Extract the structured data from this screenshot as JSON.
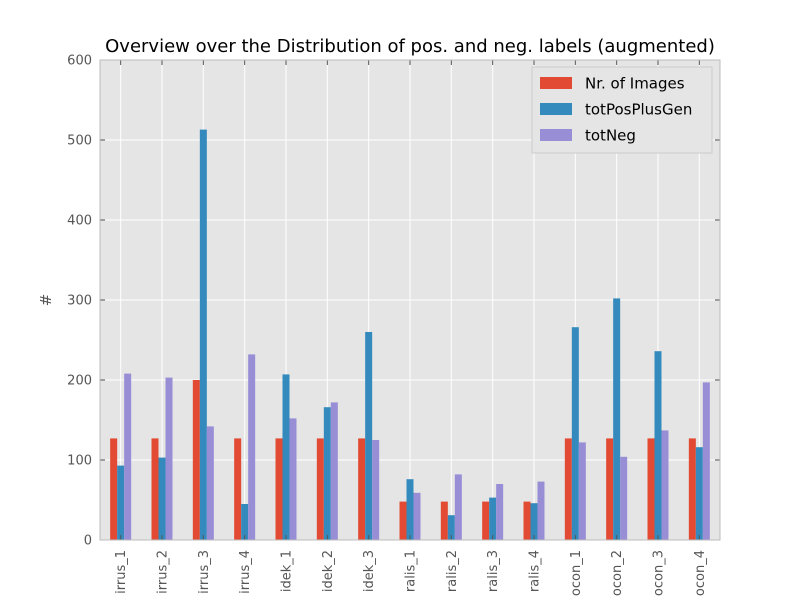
{
  "chart_data": {
    "type": "bar",
    "title": "Overview over the Distribution of pos. and neg. labels (augmented)",
    "xlabel": "",
    "ylabel": "#",
    "ylim": [
      0,
      600
    ],
    "yticks": [
      0,
      100,
      200,
      300,
      400,
      500,
      600
    ],
    "grid": true,
    "legend_position": "top-right",
    "categories": [
      "irrus_1",
      "irrus_2",
      "irrus_3",
      "irrus_4",
      "idek_1",
      "idek_2",
      "idek_3",
      "ralis_1",
      "ralis_2",
      "ralis_3",
      "ralis_4",
      "ocon_1",
      "ocon_2",
      "ocon_3",
      "ocon_4"
    ],
    "series": [
      {
        "name": "Nr. of Images",
        "color": "#E24A33",
        "values": [
          127,
          127,
          200,
          127,
          127,
          127,
          127,
          48,
          48,
          48,
          48,
          127,
          127,
          127,
          127
        ]
      },
      {
        "name": "totPosPlusGen",
        "color": "#348ABD",
        "values": [
          93,
          103,
          513,
          45,
          207,
          166,
          260,
          76,
          31,
          53,
          46,
          266,
          302,
          236,
          116
        ]
      },
      {
        "name": "totNeg",
        "color": "#988ED5",
        "values": [
          208,
          203,
          142,
          232,
          152,
          172,
          125,
          59,
          82,
          70,
          73,
          122,
          104,
          137,
          197
        ]
      }
    ]
  }
}
